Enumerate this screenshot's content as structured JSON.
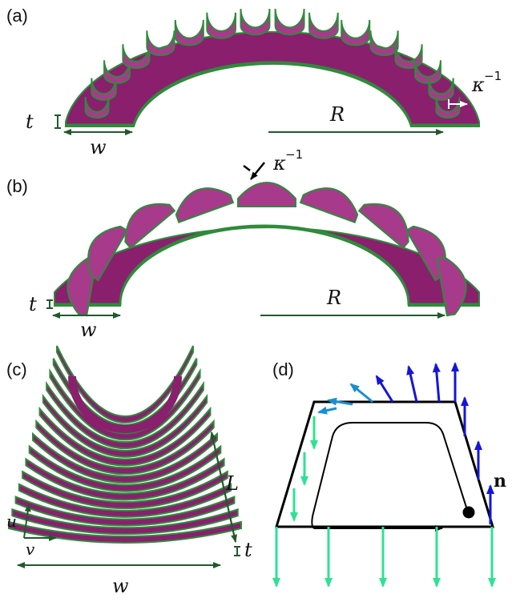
{
  "panels": {
    "a": {
      "label": "(a)",
      "t": "t",
      "w": "w",
      "R": "R",
      "kappa": "κ",
      "kappa_exp": "−1"
    },
    "b": {
      "label": "(b)",
      "t": "t",
      "w": "w",
      "R": "R",
      "kappa": "κ",
      "kappa_exp": "−1"
    },
    "c": {
      "label": "(c)",
      "L": "L",
      "t": "t",
      "u": "u",
      "v": "v",
      "w": "w"
    },
    "d": {
      "label": "(d)",
      "n": "n"
    }
  },
  "colors": {
    "surface": "#8a1f6e",
    "surface_dark": "#5e1550",
    "surface_light": "#a83a8c",
    "edge_green": "#2e8b3a",
    "dim_green": "#1f5a2c",
    "normal_blue": "#1515d8",
    "field_cyan": "#1a8fd0",
    "field_mint": "#2fe096",
    "outline": "#000000"
  }
}
